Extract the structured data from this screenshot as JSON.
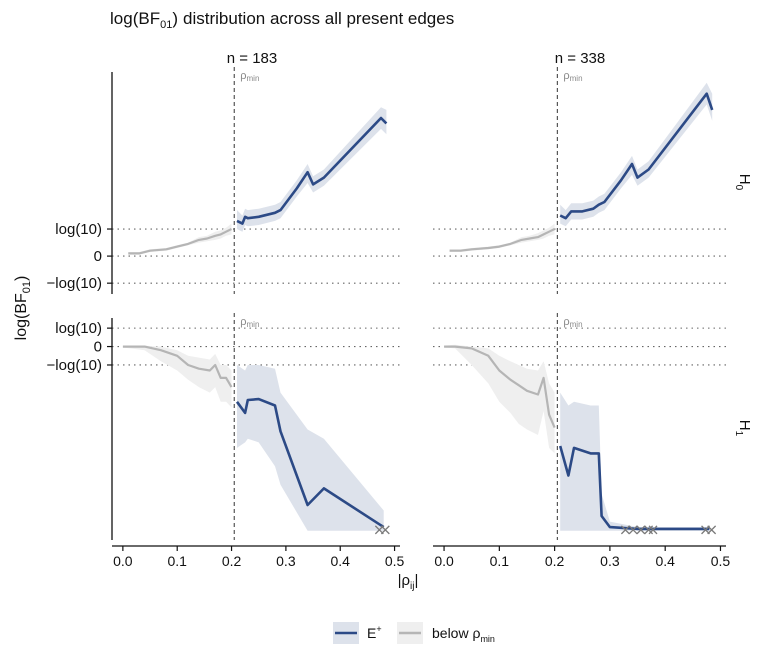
{
  "chart_data": {
    "type": "line",
    "title": {
      "prefix": "log",
      "base": "BF",
      "sub": "01",
      "suffix": "distribution across all present edges"
    },
    "ylabel": {
      "prefix": "log",
      "base": "BF",
      "sub": "01"
    },
    "xlabel": {
      "base": "|ρ",
      "sub": "ij",
      "suffix": "|"
    },
    "xlim": [
      -0.02,
      0.51
    ],
    "xticks": [
      0.0,
      0.1,
      0.2,
      0.3,
      0.4,
      0.5
    ],
    "xtick_labels": [
      "0.0",
      "0.1",
      "0.2",
      "0.3",
      "0.4",
      "0.5"
    ],
    "rho_min": 0.205,
    "rho_min_label": {
      "base": "ρ",
      "sub": "min"
    },
    "legend": {
      "placement": "bottom",
      "items": [
        {
          "key": "eplus",
          "label": {
            "base": "E",
            "sup": "+"
          },
          "color": "#2c4a86",
          "fill": "#dde2eb"
        },
        {
          "key": "below",
          "label": {
            "base": "below ρ",
            "sub": "min"
          },
          "color": "#b5b5b5",
          "fill": "#efefef"
        }
      ]
    },
    "columns": [
      {
        "label": "n = 183"
      },
      {
        "label": "n = 338"
      }
    ],
    "rows": [
      {
        "label": {
          "base": "H",
          "sub": "0"
        },
        "ylim": [
          -1.4,
          6.8
        ],
        "yticks": [
          {
            "y": 1,
            "label": "log(10)"
          },
          {
            "y": 0,
            "label": "0"
          },
          {
            "y": -1,
            "label": "−log(10)"
          }
        ]
      },
      {
        "label": {
          "base": "H",
          "sub": "1"
        },
        "ylim": [
          -10.5,
          1.55
        ],
        "yticks": [
          {
            "y": 1,
            "label": "log(10)"
          },
          {
            "y": 0,
            "label": "0"
          },
          {
            "y": -1,
            "label": "−log(10)"
          }
        ]
      }
    ],
    "panels": [
      {
        "row": 0,
        "col": 0,
        "below": {
          "x": [
            0.01,
            0.03,
            0.05,
            0.08,
            0.1,
            0.12,
            0.14,
            0.155,
            0.17,
            0.18,
            0.19,
            0.2
          ],
          "y": [
            0.1,
            0.1,
            0.2,
            0.25,
            0.35,
            0.45,
            0.6,
            0.65,
            0.75,
            0.8,
            0.9,
            1.0
          ],
          "lo": [
            0.05,
            0.05,
            0.15,
            0.2,
            0.3,
            0.4,
            0.5,
            0.55,
            0.6,
            0.65,
            0.75,
            0.8
          ],
          "hi": [
            0.15,
            0.15,
            0.25,
            0.3,
            0.4,
            0.5,
            0.7,
            0.75,
            0.9,
            0.95,
            1.05,
            1.2
          ]
        },
        "eplus": {
          "x": [
            0.21,
            0.22,
            0.225,
            0.23,
            0.25,
            0.28,
            0.29,
            0.32,
            0.34,
            0.35,
            0.37,
            0.475,
            0.485
          ],
          "y": [
            1.3,
            1.2,
            1.45,
            1.4,
            1.45,
            1.6,
            1.7,
            2.5,
            3.1,
            2.65,
            2.9,
            5.1,
            4.9
          ],
          "lo": [
            1.0,
            0.9,
            1.15,
            1.1,
            1.15,
            1.3,
            1.4,
            2.2,
            2.7,
            2.35,
            2.6,
            4.7,
            4.5
          ],
          "hi": [
            1.7,
            1.5,
            1.75,
            1.7,
            1.75,
            1.9,
            2.0,
            2.8,
            3.4,
            2.95,
            3.2,
            5.5,
            5.4
          ]
        },
        "x_markers": []
      },
      {
        "row": 0,
        "col": 1,
        "below": {
          "x": [
            0.01,
            0.03,
            0.05,
            0.08,
            0.1,
            0.12,
            0.14,
            0.155,
            0.17,
            0.18,
            0.19,
            0.2
          ],
          "y": [
            0.2,
            0.2,
            0.25,
            0.3,
            0.35,
            0.45,
            0.6,
            0.65,
            0.7,
            0.8,
            0.9,
            1.0
          ],
          "lo": [
            0.15,
            0.15,
            0.2,
            0.25,
            0.3,
            0.4,
            0.5,
            0.55,
            0.6,
            0.65,
            0.75,
            0.8
          ],
          "hi": [
            0.25,
            0.25,
            0.3,
            0.35,
            0.4,
            0.5,
            0.7,
            0.75,
            0.85,
            0.95,
            1.05,
            1.2
          ]
        },
        "eplus": {
          "x": [
            0.21,
            0.22,
            0.23,
            0.25,
            0.27,
            0.28,
            0.29,
            0.32,
            0.34,
            0.35,
            0.37,
            0.475,
            0.485
          ],
          "y": [
            1.5,
            1.4,
            1.65,
            1.65,
            1.75,
            1.9,
            2.0,
            2.8,
            3.4,
            2.9,
            3.2,
            6.0,
            5.4
          ],
          "lo": [
            1.2,
            1.1,
            1.35,
            1.35,
            1.45,
            1.6,
            1.7,
            2.5,
            3.0,
            2.6,
            2.9,
            5.6,
            5.0
          ],
          "hi": [
            1.9,
            1.7,
            1.95,
            1.95,
            2.05,
            2.2,
            2.3,
            3.1,
            3.7,
            3.2,
            3.5,
            6.4,
            6.0
          ]
        },
        "x_markers": []
      },
      {
        "row": 1,
        "col": 0,
        "below": {
          "x": [
            0.0,
            0.04,
            0.07,
            0.1,
            0.12,
            0.14,
            0.16,
            0.17,
            0.18,
            0.19,
            0.2
          ],
          "y": [
            0.0,
            0.0,
            -0.2,
            -0.5,
            -1.0,
            -1.2,
            -1.3,
            -1.0,
            -1.7,
            -1.7,
            -2.2
          ],
          "lo": [
            -0.05,
            -0.2,
            -0.8,
            -1.3,
            -1.8,
            -2.2,
            -2.5,
            -2.2,
            -3.0,
            -3.0,
            -3.3
          ],
          "hi": [
            0.05,
            0.05,
            0.0,
            -0.2,
            -0.5,
            -0.6,
            -0.7,
            -0.4,
            -1.0,
            -1.0,
            -1.3
          ]
        },
        "eplus": {
          "x": [
            0.21,
            0.225,
            0.23,
            0.25,
            0.28,
            0.29,
            0.34,
            0.37,
            0.48
          ],
          "y": [
            -3.0,
            -3.6,
            -2.9,
            -2.85,
            -3.2,
            -4.6,
            -8.6,
            -7.7,
            -9.8
          ],
          "lo": [
            -5.5,
            -5.2,
            -5.0,
            -5.2,
            -6.5,
            -7.5,
            -10.0,
            -10.0,
            -10.0
          ],
          "hi": [
            -1.0,
            -1.3,
            -1.0,
            -1.0,
            -1.2,
            -2.5,
            -4.5,
            -5.0,
            -8.9
          ]
        },
        "x_markers": [
          0.472,
          0.483
        ]
      },
      {
        "row": 1,
        "col": 1,
        "below": {
          "x": [
            0.0,
            0.02,
            0.05,
            0.08,
            0.1,
            0.12,
            0.135,
            0.15,
            0.17,
            0.18,
            0.19,
            0.2
          ],
          "y": [
            0.0,
            0.0,
            -0.1,
            -0.5,
            -1.3,
            -1.8,
            -2.1,
            -2.4,
            -2.6,
            -1.7,
            -3.7,
            -4.4
          ],
          "lo": [
            -0.05,
            -0.1,
            -1.0,
            -2.0,
            -3.0,
            -3.6,
            -4.2,
            -4.5,
            -4.8,
            -3.5,
            -5.5,
            -5.8
          ],
          "hi": [
            0.05,
            0.1,
            0.0,
            -0.1,
            -0.5,
            -0.8,
            -1.0,
            -1.2,
            -1.3,
            -0.8,
            -2.0,
            -2.5
          ]
        },
        "eplus": {
          "x": [
            0.21,
            0.225,
            0.235,
            0.265,
            0.28,
            0.285,
            0.3,
            0.35,
            0.48
          ],
          "y": [
            -5.4,
            -7.0,
            -5.5,
            -5.8,
            -5.8,
            -9.2,
            -9.8,
            -9.9,
            -9.9
          ],
          "lo": [
            -10.0,
            -10.0,
            -10.0,
            -10.0,
            -10.0,
            -10.0,
            -10.0,
            -10.0,
            -10.0
          ],
          "hi": [
            -2.5,
            -3.2,
            -3.0,
            -3.2,
            -3.2,
            -8.0,
            -9.5,
            -9.8,
            -9.8
          ]
        },
        "x_markers": [
          0.328,
          0.342,
          0.356,
          0.37,
          0.378,
          0.473,
          0.484
        ]
      }
    ]
  }
}
